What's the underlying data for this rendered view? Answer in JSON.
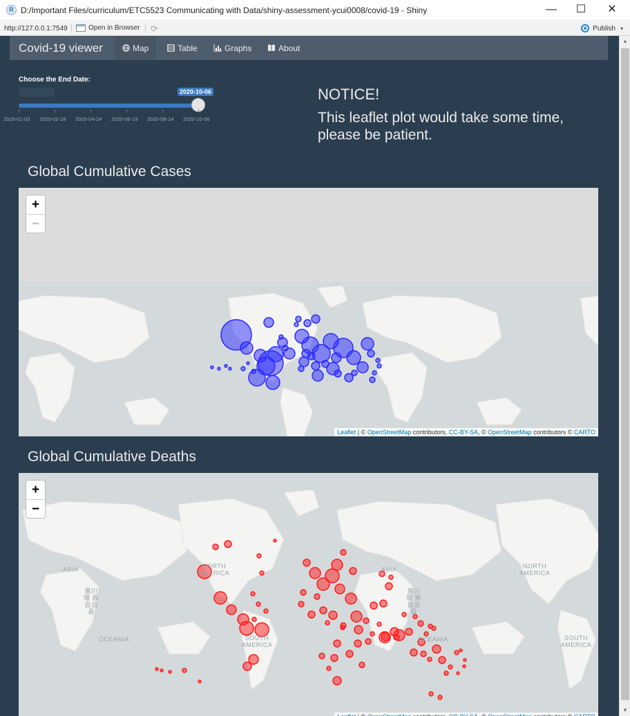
{
  "window": {
    "title": "D:/Important Files/curriculum/ETC5523 Communicating with Data/shiny-assessment-ycui0008/covid-19 - Shiny",
    "app_icon_letter": "R",
    "minimize": "—",
    "maximize": "☐",
    "close": "✕"
  },
  "urlbar": {
    "url": "http://127.0.0.1:7549",
    "open_in_browser": "Open in Browser",
    "publish": "Publish"
  },
  "navbar": {
    "brand": "Covid-19 viewer",
    "tabs": [
      {
        "label": "Map",
        "icon": "globe-icon",
        "active": true
      },
      {
        "label": "Table",
        "icon": "table-icon",
        "active": false
      },
      {
        "label": "Graphs",
        "icon": "bar-chart-icon",
        "active": false
      },
      {
        "label": "About",
        "icon": "book-icon",
        "active": false
      }
    ]
  },
  "slider": {
    "label": "Choose the End Date:",
    "value": "2020-10-06",
    "ticks": [
      "2020-01-03",
      "2020-02-28",
      "2020-04-24",
      "2020-06-19",
      "2020-08-14",
      "2020-10-06"
    ],
    "fraction": 1.0
  },
  "notice": {
    "title": "NOTICE!",
    "text": "This leaflet plot would take some time, please be patient."
  },
  "maps": [
    {
      "title": "Global Cumulative Cases",
      "zoom_in": "+",
      "zoom_out": "−",
      "marker_color": "#2b2bff",
      "labels": []
    },
    {
      "title": "Global Cumulative Deaths",
      "zoom_in": "+",
      "zoom_out": "−",
      "marker_color": "#ff1a1a",
      "labels": [
        {
          "text": "ASIA"
        },
        {
          "text": "NORTH AMERICA"
        },
        {
          "text": "富川堰 族自治 县"
        },
        {
          "text": "ASIA"
        },
        {
          "text": "富川堰 族自治 县"
        },
        {
          "text": "NORTH AMERICA"
        },
        {
          "text": "OCEANIA"
        },
        {
          "text": "SOUTH AMERICA"
        },
        {
          "text": "OCEANIA"
        },
        {
          "text": "SOUTH AMERICA"
        }
      ]
    }
  ],
  "attribution": {
    "leaflet": "Leaflet",
    "sep1": " | © ",
    "osm1": "OpenStreetMap",
    "contrib1": " contributors, ",
    "ccbysa": "CC-BY-SA",
    "sep2": ", © ",
    "osm2": "OpenStreetMap",
    "contrib2": " contributors © ",
    "carto": "CARTO"
  },
  "colors": {
    "page_bg": "#2b3e50",
    "navbar_bg": "#4e5d6c",
    "slider_accent": "#3a7bc0",
    "cases_marker": "#2b2bff",
    "deaths_marker": "#ff1a1a"
  }
}
